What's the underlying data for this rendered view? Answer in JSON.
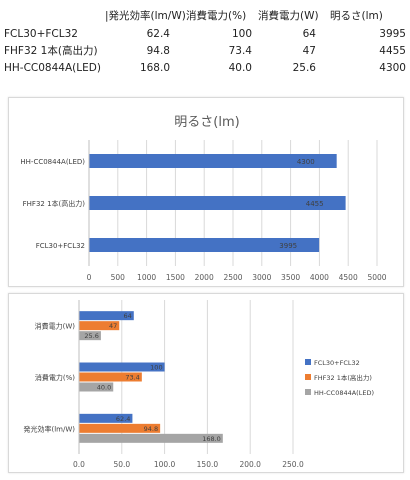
{
  "table": {
    "headers": [
      "",
      "|発光効率(lm/W)",
      "消費電力(%)",
      "消費電力(W)",
      "明るさ(lm)"
    ],
    "rows": [
      [
        "FCL30+FCL32",
        "62.4",
        "100",
        "64",
        "3995"
      ],
      [
        "FHF32 1本(高出力)",
        "94.8",
        "73.4",
        "47",
        "4455"
      ],
      [
        "HH-CC0844A(LED)",
        "168.0",
        "40.0",
        "25.6",
        "4300"
      ]
    ]
  },
  "chart_data": [
    {
      "type": "bar",
      "orientation": "horizontal",
      "title": "明るさ(lm)",
      "categories": [
        "HH-CC0844A(LED)",
        "FHF32 1本(高出力)",
        "FCL30+FCL32"
      ],
      "values": [
        4300,
        4455,
        3995
      ],
      "value_labels": [
        "4300",
        "4455",
        "3995"
      ],
      "xlim": [
        0,
        5000
      ],
      "xticks": [
        "0",
        "500",
        "1000",
        "1500",
        "2000",
        "2500",
        "3000",
        "3500",
        "4000",
        "4500",
        "5000"
      ],
      "color": "#4472c4",
      "grid": true
    },
    {
      "type": "bar",
      "orientation": "horizontal",
      "categories": [
        "消費電力(W)",
        "消費電力(%)",
        "発光効率(lm/W)"
      ],
      "series": [
        {
          "name": "FCL30+FCL32",
          "values": [
            64,
            100,
            62.4
          ],
          "labels": [
            "64",
            "100",
            "62.4"
          ],
          "color": "#4472c4"
        },
        {
          "name": "FHF32 1本(高出力)",
          "values": [
            47,
            73.4,
            94.8
          ],
          "labels": [
            "47",
            "73.4",
            "94.8"
          ],
          "color": "#ed7d31"
        },
        {
          "name": "HH-CC0844A(LED)",
          "values": [
            25.6,
            40.0,
            168.0
          ],
          "labels": [
            "25.6",
            "40.0",
            "168.0"
          ],
          "color": "#a5a5a5"
        }
      ],
      "xlim": [
        0,
        250
      ],
      "xticks": [
        "0.0",
        "50.0",
        "100.0",
        "150.0",
        "200.0",
        "250.0"
      ],
      "grid": true,
      "legend_position": "right"
    }
  ]
}
